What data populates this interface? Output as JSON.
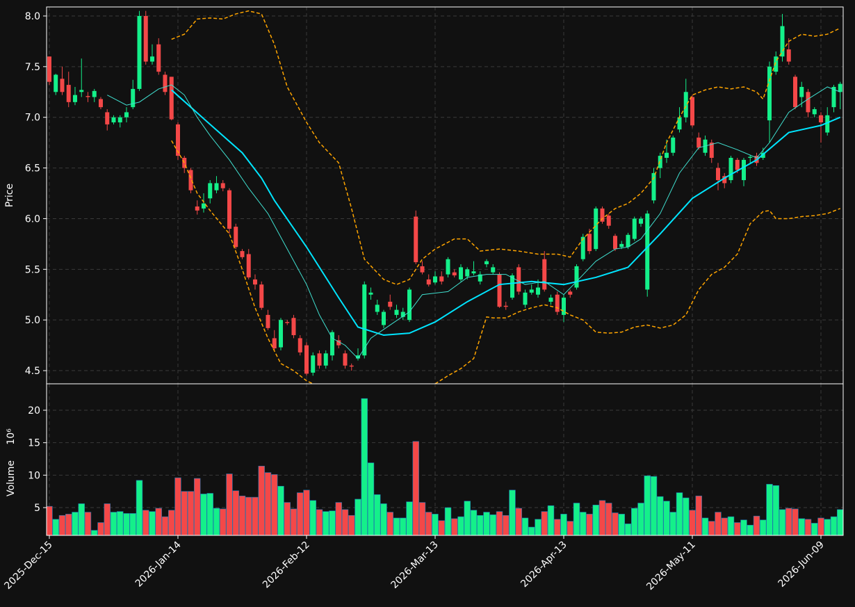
{
  "chart_data": [
    {
      "type": "candlestick",
      "ylabel": "Price",
      "categories": [
        "2025-Dec-15",
        null,
        null,
        null,
        null,
        null,
        null,
        null,
        null,
        null,
        null,
        null,
        null,
        null,
        null,
        null,
        null,
        null,
        null,
        null,
        "2026-Jan-14",
        null,
        null,
        null,
        null,
        null,
        null,
        null,
        null,
        null,
        null,
        null,
        null,
        null,
        null,
        null,
        null,
        null,
        null,
        null,
        "2026-Feb-12",
        null,
        null,
        null,
        null,
        null,
        null,
        null,
        null,
        null,
        null,
        null,
        null,
        null,
        null,
        null,
        null,
        null,
        null,
        null,
        "2026-Mar-13",
        null,
        null,
        null,
        null,
        null,
        null,
        null,
        null,
        null,
        null,
        null,
        null,
        null,
        null,
        null,
        null,
        null,
        null,
        null,
        "2026-Apr-13",
        null,
        null,
        null,
        null,
        null,
        null,
        null,
        null,
        null,
        null,
        null,
        null,
        null,
        null,
        null,
        null,
        null,
        null,
        null,
        "2026-May-11",
        null,
        null,
        null,
        null,
        null,
        null,
        null,
        null,
        null,
        null,
        null,
        null,
        null,
        null,
        null,
        null,
        null,
        null,
        null,
        "2026-Jun-09",
        null,
        null,
        null
      ],
      "open": [
        7.6,
        7.25,
        7.38,
        7.32,
        7.15,
        7.25,
        7.21,
        7.2,
        7.18,
        7.05,
        6.95,
        6.95,
        7.0,
        7.1,
        7.28,
        8.0,
        7.55,
        7.72,
        7.42,
        7.4,
        6.93,
        6.6,
        6.48,
        6.12,
        6.1,
        6.2,
        6.28,
        6.35,
        6.28,
        5.92,
        5.68,
        5.65,
        5.4,
        5.35,
        5.05,
        4.82,
        4.73,
        4.98,
        5.02,
        4.82,
        4.75,
        4.48,
        4.67,
        4.55,
        4.65,
        4.8,
        4.67,
        4.55,
        4.62,
        4.65,
        5.25,
        5.08,
        4.95,
        5.18,
        5.05,
        5.03,
        5.0,
        6.02,
        5.53,
        5.4,
        5.37,
        5.43,
        5.45,
        5.47,
        5.4,
        5.43,
        5.46,
        5.38,
        5.55,
        5.47,
        5.45,
        5.14,
        5.22,
        5.52,
        5.15,
        5.27,
        5.25,
        5.6,
        5.18,
        5.25,
        5.05,
        5.28,
        5.32,
        5.6,
        5.85,
        5.7,
        6.1,
        6.03,
        5.83,
        5.72,
        5.72,
        5.8,
        5.95,
        5.3,
        6.18,
        6.5,
        6.6,
        6.65,
        6.88,
        7.0,
        7.2,
        6.8,
        6.65,
        6.75,
        6.5,
        6.42,
        6.38,
        6.58,
        6.38,
        6.6,
        6.62,
        6.6,
        6.97,
        7.45,
        7.6,
        7.67,
        7.4,
        7.2,
        7.25,
        7.03,
        7.02,
        6.85,
        7.1,
        7.25
      ],
      "high": [
        7.6,
        7.43,
        7.5,
        7.45,
        7.3,
        7.58,
        7.25,
        7.28,
        7.2,
        7.08,
        7.02,
        7.02,
        7.1,
        7.37,
        8.05,
        8.05,
        7.72,
        7.78,
        7.45,
        7.4,
        6.95,
        6.62,
        6.5,
        6.18,
        6.25,
        6.38,
        6.42,
        6.38,
        6.3,
        5.95,
        5.7,
        5.7,
        5.45,
        5.38,
        5.1,
        4.9,
        5.02,
        5.0,
        5.05,
        4.85,
        4.78,
        4.68,
        4.7,
        4.7,
        4.9,
        4.85,
        4.7,
        4.57,
        4.72,
        5.38,
        5.32,
        5.2,
        5.1,
        5.25,
        5.15,
        5.12,
        5.32,
        6.08,
        5.58,
        5.45,
        5.48,
        5.48,
        5.62,
        5.5,
        5.55,
        5.52,
        5.58,
        5.48,
        5.6,
        5.55,
        5.47,
        5.18,
        5.46,
        5.55,
        5.3,
        5.35,
        5.4,
        5.68,
        5.25,
        5.28,
        5.25,
        5.3,
        5.55,
        5.85,
        5.9,
        6.12,
        6.12,
        6.05,
        5.85,
        5.78,
        5.86,
        6.02,
        6.02,
        6.08,
        6.5,
        6.65,
        6.78,
        6.82,
        7.1,
        7.38,
        7.22,
        6.85,
        6.82,
        6.78,
        6.55,
        6.45,
        6.62,
        6.6,
        6.6,
        6.63,
        6.65,
        6.7,
        7.55,
        7.65,
        8.02,
        7.78,
        7.42,
        7.35,
        7.28,
        7.1,
        7.05,
        7.1,
        7.32,
        7.35
      ],
      "low": [
        7.32,
        7.22,
        7.22,
        7.1,
        7.12,
        7.2,
        7.15,
        7.15,
        7.08,
        6.87,
        6.93,
        6.9,
        6.95,
        7.08,
        7.26,
        7.52,
        7.52,
        7.42,
        7.22,
        6.97,
        6.58,
        6.45,
        6.25,
        6.04,
        6.06,
        6.15,
        6.25,
        6.27,
        5.85,
        5.7,
        5.6,
        5.4,
        5.3,
        5.1,
        4.9,
        4.7,
        4.7,
        4.95,
        4.82,
        4.65,
        4.45,
        4.45,
        4.52,
        4.52,
        4.6,
        4.72,
        4.52,
        4.5,
        4.6,
        4.62,
        5.2,
        5.05,
        4.92,
        5.1,
        5.02,
        5.0,
        4.98,
        5.55,
        5.45,
        5.33,
        5.35,
        5.35,
        5.42,
        5.42,
        5.38,
        5.4,
        5.44,
        5.35,
        5.52,
        5.45,
        5.12,
        5.1,
        5.2,
        5.25,
        5.12,
        5.25,
        5.22,
        5.28,
        5.15,
        5.05,
        4.98,
        5.22,
        5.3,
        5.58,
        5.65,
        5.68,
        5.95,
        5.9,
        5.68,
        5.7,
        5.7,
        5.78,
        5.92,
        5.23,
        6.15,
        6.4,
        6.55,
        6.62,
        6.85,
        6.95,
        6.9,
        6.68,
        6.62,
        6.55,
        6.28,
        6.3,
        6.35,
        6.45,
        6.32,
        6.55,
        6.52,
        6.58,
        6.75,
        7.42,
        7.55,
        7.52,
        7.08,
        7.1,
        7.0,
        7.0,
        6.75,
        6.82,
        7.05,
        7.08
      ],
      "close": [
        7.35,
        7.42,
        7.25,
        7.15,
        7.22,
        7.27,
        7.2,
        7.26,
        7.1,
        6.93,
        7.0,
        7.0,
        7.05,
        7.28,
        8.0,
        7.55,
        7.6,
        7.45,
        7.25,
        6.98,
        6.62,
        6.5,
        6.28,
        6.08,
        6.15,
        6.35,
        6.35,
        6.3,
        5.9,
        5.72,
        5.62,
        5.42,
        5.35,
        5.12,
        4.92,
        4.72,
        5.0,
        4.97,
        4.85,
        4.68,
        4.47,
        4.65,
        4.55,
        4.67,
        4.88,
        4.75,
        4.55,
        4.54,
        4.65,
        5.35,
        5.27,
        5.15,
        5.08,
        5.13,
        5.1,
        5.08,
        5.3,
        5.57,
        5.47,
        5.35,
        5.43,
        5.38,
        5.6,
        5.44,
        5.52,
        5.5,
        5.48,
        5.45,
        5.58,
        5.52,
        5.13,
        5.13,
        5.44,
        5.28,
        5.27,
        5.3,
        5.32,
        5.3,
        5.22,
        5.08,
        5.22,
        5.25,
        5.53,
        5.82,
        5.68,
        6.1,
        5.97,
        5.93,
        5.7,
        5.75,
        5.84,
        6.0,
        6.0,
        6.05,
        6.45,
        6.62,
        6.65,
        6.8,
        7.0,
        7.25,
        6.92,
        6.7,
        6.78,
        6.6,
        6.38,
        6.35,
        6.6,
        6.48,
        6.58,
        6.61,
        6.55,
        6.65,
        7.5,
        7.6,
        7.9,
        7.55,
        7.1,
        7.3,
        7.05,
        7.08,
        6.95,
        7.02,
        7.3,
        7.33
      ],
      "up_color": "#14f08a",
      "down_color": "#f44848",
      "ylim": [
        4.37,
        8.089
      ],
      "yticks": [
        4.5,
        {
          "value": 5,
          "label": "5.0"
        },
        5.5,
        {
          "value": 6,
          "label": "6.0"
        },
        6.5,
        {
          "value": 7,
          "label": "7.0"
        },
        7.5,
        {
          "value": 8,
          "label": "8.0"
        }
      ],
      "grid": true,
      "lines": [
        {
          "style": "thick",
          "color": "#00e5ff",
          "x": [
            19,
            25,
            30,
            33,
            35,
            40,
            45,
            48,
            52,
            56,
            60,
            65,
            70,
            75,
            80,
            85,
            90,
            95,
            100,
            105,
            110,
            115,
            120,
            123
          ],
          "values": [
            7.27,
            6.93,
            6.65,
            6.4,
            6.18,
            5.72,
            5.22,
            4.93,
            4.85,
            4.87,
            4.98,
            5.18,
            5.35,
            5.38,
            5.35,
            5.42,
            5.52,
            5.85,
            6.2,
            6.4,
            6.58,
            6.85,
            6.92,
            7.0
          ]
        },
        {
          "style": "thin",
          "color": "#40e0d0",
          "x": [
            9,
            12,
            14,
            17,
            19,
            21,
            23,
            25,
            28,
            31,
            34,
            37,
            40,
            42,
            44,
            46,
            48,
            50,
            53,
            56,
            58,
            62,
            65,
            68,
            71,
            74,
            77,
            80,
            82,
            85,
            88,
            90,
            92,
            95,
            98,
            101,
            104,
            107,
            110,
            112,
            115,
            118,
            121,
            123
          ],
          "values": [
            7.22,
            7.12,
            7.15,
            7.28,
            7.32,
            7.22,
            7.0,
            6.82,
            6.58,
            6.3,
            6.05,
            5.7,
            5.35,
            5.05,
            4.82,
            4.75,
            4.62,
            4.82,
            4.95,
            5.08,
            5.25,
            5.28,
            5.42,
            5.45,
            5.45,
            5.35,
            5.38,
            5.25,
            5.38,
            5.58,
            5.7,
            5.72,
            5.8,
            6.05,
            6.45,
            6.7,
            6.75,
            6.68,
            6.6,
            6.75,
            7.05,
            7.18,
            7.3,
            7.25
          ]
        },
        {
          "style": "dashed",
          "color": "#ffa500",
          "x": [
            19,
            21,
            23,
            25,
            27,
            29,
            31,
            33,
            35,
            37,
            40,
            42,
            45,
            47,
            49,
            52,
            54,
            56,
            58,
            60,
            63,
            65,
            67,
            70,
            73,
            76,
            79,
            81,
            83,
            86,
            88,
            90,
            92,
            94,
            96,
            98,
            100,
            102,
            104,
            106,
            108,
            110,
            111,
            113,
            115,
            117,
            119,
            121,
            123
          ],
          "values": [
            7.77,
            7.82,
            7.97,
            7.98,
            7.97,
            8.02,
            8.05,
            8.02,
            7.72,
            7.3,
            6.95,
            6.75,
            6.55,
            6.1,
            5.6,
            5.4,
            5.35,
            5.4,
            5.6,
            5.7,
            5.8,
            5.8,
            5.68,
            5.7,
            5.68,
            5.65,
            5.65,
            5.62,
            5.8,
            6.0,
            6.1,
            6.15,
            6.25,
            6.4,
            6.75,
            7.0,
            7.22,
            7.27,
            7.3,
            7.28,
            7.3,
            7.25,
            7.18,
            7.55,
            7.75,
            7.82,
            7.8,
            7.82,
            7.88
          ]
        },
        {
          "style": "dashed",
          "color": "#ffa500",
          "x": [
            19,
            21,
            23,
            25,
            28,
            30,
            32,
            34,
            36,
            38,
            40,
            41,
            50,
            60,
            62,
            64,
            66,
            68,
            69,
            71,
            73,
            75,
            77,
            79,
            81,
            83,
            85,
            87,
            89,
            91,
            93,
            95,
            97,
            99,
            101,
            103,
            105,
            107,
            109,
            111,
            112,
            113,
            115,
            117,
            119,
            121,
            123
          ],
          "values": [
            6.77,
            6.55,
            6.25,
            6.08,
            5.85,
            5.5,
            5.12,
            4.82,
            4.57,
            4.5,
            4.4,
            4.37,
            null,
            4.37,
            4.45,
            4.52,
            4.62,
            5.03,
            5.02,
            5.02,
            5.08,
            5.12,
            5.15,
            5.12,
            5.05,
            5.0,
            4.88,
            4.87,
            4.88,
            4.93,
            4.95,
            4.92,
            4.95,
            5.05,
            5.3,
            5.45,
            5.52,
            5.65,
            5.95,
            6.07,
            6.08,
            6.0,
            6.0,
            6.02,
            6.03,
            6.05,
            6.1
          ]
        }
      ]
    },
    {
      "type": "bar",
      "ylabel": "Volume",
      "scale_label": "10⁶",
      "values": [
        5.2,
        3.2,
        3.8,
        4.0,
        4.3,
        5.6,
        4.3,
        1.5,
        2.7,
        5.6,
        4.3,
        4.4,
        4.1,
        4.1,
        9.2,
        4.6,
        4.4,
        4.9,
        3.6,
        4.6,
        9.6,
        7.5,
        7.5,
        9.5,
        7.1,
        7.2,
        4.9,
        4.8,
        10.2,
        7.6,
        6.8,
        6.6,
        6.6,
        11.4,
        10.4,
        10.1,
        8.3,
        5.8,
        4.8,
        7.3,
        7.7,
        6.1,
        4.7,
        4.4,
        4.5,
        5.8,
        4.7,
        3.8,
        6.3,
        21.8,
        11.9,
        7.0,
        5.6,
        4.3,
        3.4,
        3.4,
        5.9,
        15.2,
        5.8,
        4.3,
        4.0,
        3.0,
        5.0,
        3.3,
        3.6,
        6.0,
        4.6,
        3.8,
        4.3,
        3.9,
        4.4,
        3.8,
        7.7,
        4.9,
        3.4,
        2.0,
        3.2,
        4.4,
        5.3,
        3.2,
        4.0,
        2.9,
        5.7,
        4.3,
        4.0,
        5.4,
        6.1,
        5.7,
        4.2,
        4.0,
        2.5,
        4.9,
        5.7,
        9.9,
        9.8,
        6.7,
        6.0,
        4.3,
        7.3,
        6.5,
        4.6,
        6.8,
        3.4,
        2.9,
        4.3,
        3.4,
        3.6,
        2.7,
        3.1,
        2.3,
        3.7,
        3.1,
        8.6,
        8.4,
        4.7,
        4.9,
        4.8,
        3.3,
        3.2,
        2.6,
        3.4,
        3.2,
        3.6,
        4.7
      ],
      "edge_color": "#1f77b4",
      "ylim": [
        0.72,
        24.07
      ],
      "yticks": [
        5,
        10,
        15,
        20
      ],
      "grid": true
    }
  ]
}
